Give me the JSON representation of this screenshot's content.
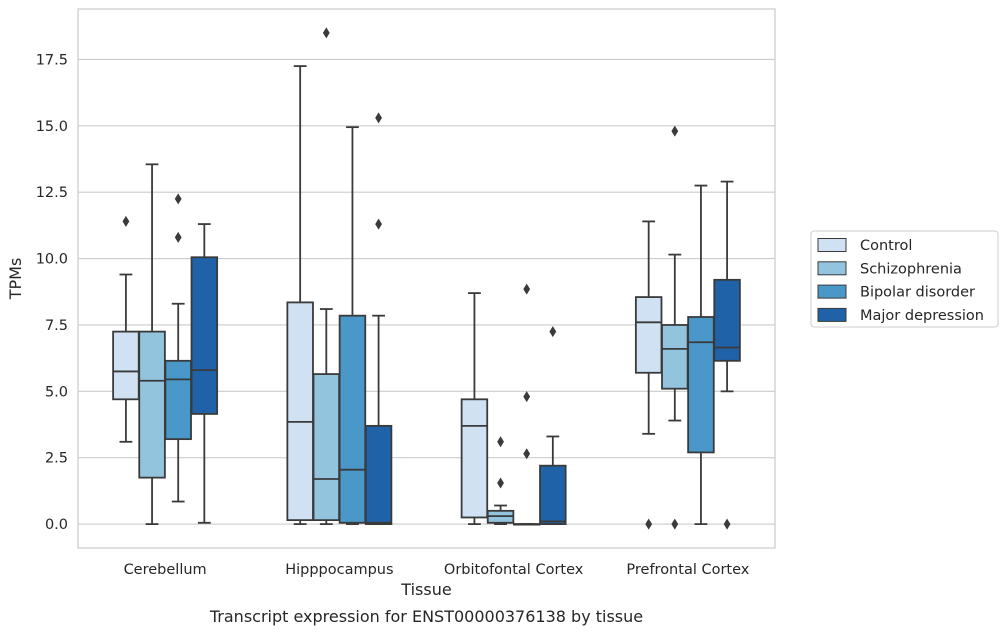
{
  "chart_data": {
    "type": "box",
    "caption": "Transcript expression for ENST00000376138 by tissue",
    "xlabel": "Tissue",
    "ylabel": "TPMs",
    "ylim": [
      -0.9,
      19.4
    ],
    "yticks": [
      0.0,
      2.5,
      5.0,
      7.5,
      10.0,
      12.5,
      15.0,
      17.5
    ],
    "ytick_labels": [
      "0.0",
      "2.5",
      "5.0",
      "7.5",
      "10.0",
      "12.5",
      "15.0",
      "17.5"
    ],
    "grid": "horizontal",
    "legend_position": "right",
    "categories": [
      "Cerebellum",
      "Hipppocampus",
      "Orbitofontal Cortex",
      "Prefrontal Cortex"
    ],
    "series": [
      {
        "name": "Control",
        "color": "#cfe1f2",
        "boxes": [
          {
            "whislo": 3.1,
            "q1": 4.7,
            "med": 5.75,
            "q3": 7.25,
            "whishi": 9.4,
            "fliers": [
              11.4
            ]
          },
          {
            "whislo": 0.0,
            "q1": 0.15,
            "med": 3.85,
            "q3": 8.35,
            "whishi": 17.25,
            "fliers": []
          },
          {
            "whislo": 0.0,
            "q1": 0.25,
            "med": 3.7,
            "q3": 4.7,
            "whishi": 8.7,
            "fliers": []
          },
          {
            "whislo": 3.4,
            "q1": 5.7,
            "med": 7.6,
            "q3": 8.55,
            "whishi": 11.4,
            "fliers": [
              0.0
            ]
          }
        ]
      },
      {
        "name": "Schizophrenia",
        "color": "#93c4de",
        "boxes": [
          {
            "whislo": 0.0,
            "q1": 1.75,
            "med": 5.4,
            "q3": 7.25,
            "whishi": 13.55,
            "fliers": []
          },
          {
            "whislo": 0.0,
            "q1": 0.15,
            "med": 1.7,
            "q3": 5.65,
            "whishi": 8.1,
            "fliers": [
              18.5
            ]
          },
          {
            "whislo": 0.0,
            "q1": 0.05,
            "med": 0.3,
            "q3": 0.5,
            "whishi": 0.7,
            "fliers": [
              1.55,
              3.1
            ]
          },
          {
            "whislo": 3.9,
            "q1": 5.1,
            "med": 6.6,
            "q3": 7.5,
            "whishi": 10.15,
            "fliers": [
              0.0,
              14.8
            ]
          }
        ]
      },
      {
        "name": "Bipolar disorder",
        "color": "#4a98c9",
        "boxes": [
          {
            "whislo": 0.85,
            "q1": 3.2,
            "med": 5.45,
            "q3": 6.15,
            "whishi": 8.3,
            "fliers": [
              10.8,
              12.25
            ]
          },
          {
            "whislo": 0.0,
            "q1": 0.05,
            "med": 2.05,
            "q3": 7.85,
            "whishi": 14.95,
            "fliers": []
          },
          {
            "whislo": 0.0,
            "q1": 0.0,
            "med": 0.0,
            "q3": 0.0,
            "whishi": 0.0,
            "fliers": [
              2.65,
              4.8,
              8.85
            ]
          },
          {
            "whislo": 0.0,
            "q1": 2.7,
            "med": 6.85,
            "q3": 7.8,
            "whishi": 12.75,
            "fliers": []
          }
        ]
      },
      {
        "name": "Major depression",
        "color": "#2062a8",
        "boxes": [
          {
            "whislo": 0.05,
            "q1": 4.15,
            "med": 5.8,
            "q3": 10.05,
            "whishi": 11.3,
            "fliers": []
          },
          {
            "whislo": 0.0,
            "q1": 0.0,
            "med": 0.05,
            "q3": 3.7,
            "whishi": 7.85,
            "fliers": [
              11.3,
              15.3
            ]
          },
          {
            "whislo": 0.0,
            "q1": 0.0,
            "med": 0.1,
            "q3": 2.2,
            "whishi": 3.3,
            "fliers": [
              7.25
            ]
          },
          {
            "whislo": 5.0,
            "q1": 6.15,
            "med": 6.65,
            "q3": 9.2,
            "whishi": 12.9,
            "fliers": [
              0.0
            ]
          }
        ]
      }
    ]
  }
}
